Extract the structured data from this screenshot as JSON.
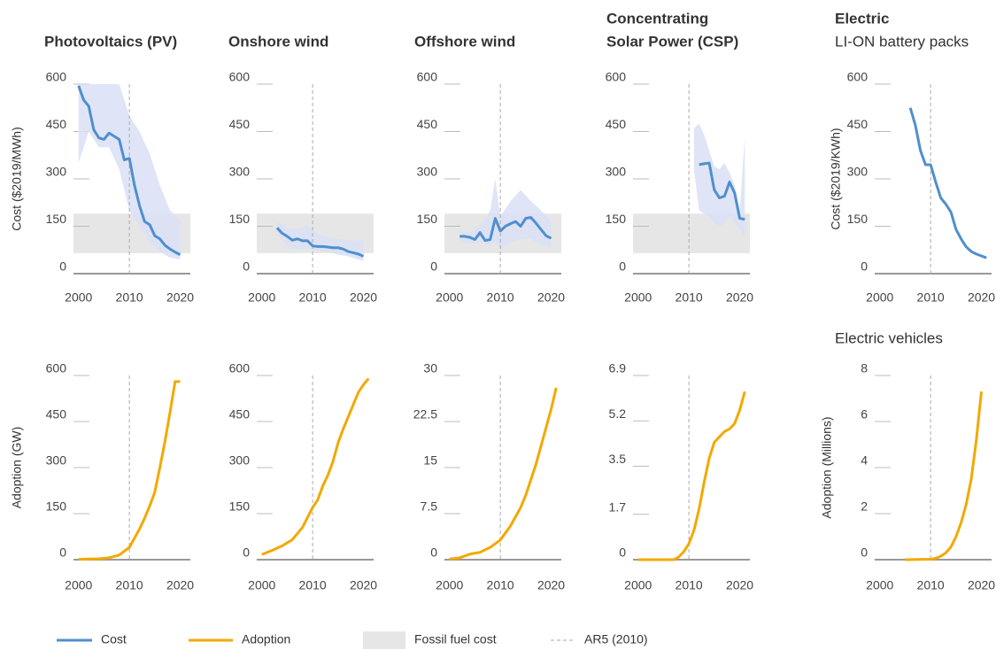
{
  "chart_data": [
    {
      "type": "line",
      "title": "Photovoltaics (PV)",
      "y_label": "Cost ($2019/MWh)",
      "x": [
        2000,
        2001,
        2002,
        2003,
        2004,
        2005,
        2006,
        2007,
        2008,
        2009,
        2010,
        2011,
        2012,
        2013,
        2014,
        2015,
        2016,
        2017,
        2018,
        2019,
        2020
      ],
      "series": [
        {
          "color": "#4f8fcf",
          "values": [
            595,
            550,
            530,
            455,
            430,
            425,
            445,
            435,
            425,
            360,
            365,
            280,
            215,
            165,
            155,
            120,
            110,
            90,
            78,
            68,
            60
          ]
        }
      ],
      "band": {
        "color": "#d9e1f4",
        "x": [
          2000,
          2002,
          2004,
          2006,
          2008,
          2010,
          2012,
          2014,
          2016,
          2018,
          2020
        ],
        "lower": [
          350,
          450,
          400,
          400,
          330,
          200,
          150,
          100,
          70,
          50,
          45
        ],
        "upper": [
          600,
          600,
          600,
          600,
          600,
          500,
          450,
          380,
          280,
          200,
          170
        ]
      },
      "fossil_range": [
        65,
        190
      ],
      "reference_x": 2010,
      "xlim": [
        1999,
        2022
      ],
      "xticks": [
        2000,
        2010,
        2020
      ],
      "ylim": [
        0,
        600
      ],
      "yticks": [
        0,
        150,
        300,
        450,
        600
      ]
    },
    {
      "type": "line",
      "title": "Onshore wind",
      "x": [
        2003,
        2004,
        2005,
        2006,
        2007,
        2008,
        2009,
        2010,
        2011,
        2012,
        2013,
        2014,
        2015,
        2016,
        2017,
        2018,
        2019,
        2020
      ],
      "series": [
        {
          "color": "#4f8fcf",
          "values": [
            145,
            128,
            118,
            106,
            110,
            104,
            104,
            88,
            86,
            86,
            84,
            82,
            82,
            78,
            70,
            66,
            62,
            55
          ]
        }
      ],
      "band": {
        "color": "#d9e1f4",
        "x": [
          2003,
          2005,
          2007,
          2009,
          2011,
          2013,
          2015,
          2017,
          2020
        ],
        "lower": [
          125,
          90,
          75,
          80,
          70,
          70,
          60,
          55,
          40
        ],
        "upper": [
          165,
          145,
          140,
          155,
          125,
          115,
          110,
          105,
          105
        ]
      },
      "fossil_range": [
        65,
        190
      ],
      "reference_x": 2010,
      "xlim": [
        1999,
        2022
      ],
      "xticks": [
        2000,
        2010,
        2020
      ],
      "ylim": [
        0,
        600
      ],
      "yticks": [
        0,
        150,
        300,
        450,
        600
      ]
    },
    {
      "type": "line",
      "title": "Offshore wind",
      "x": [
        2002,
        2003,
        2004,
        2005,
        2006,
        2007,
        2008,
        2009,
        2010,
        2011,
        2012,
        2013,
        2014,
        2015,
        2016,
        2017,
        2018,
        2019,
        2020
      ],
      "series": [
        {
          "color": "#4f8fcf",
          "values": [
            118,
            118,
            115,
            108,
            130,
            105,
            108,
            175,
            135,
            150,
            158,
            165,
            150,
            175,
            178,
            160,
            140,
            120,
            112
          ]
        }
      ],
      "band": {
        "color": "#d9e1f4",
        "x": [
          2002,
          2004,
          2006,
          2008,
          2009,
          2010,
          2012,
          2014,
          2016,
          2018,
          2020
        ],
        "lower": [
          100,
          95,
          100,
          90,
          100,
          80,
          100,
          110,
          110,
          90,
          85
        ],
        "upper": [
          130,
          130,
          150,
          200,
          300,
          180,
          230,
          265,
          230,
          200,
          165
        ]
      },
      "fossil_range": [
        65,
        190
      ],
      "reference_x": 2010,
      "xlim": [
        1999,
        2022
      ],
      "xticks": [
        2000,
        2010,
        2020
      ],
      "ylim": [
        0,
        600
      ],
      "yticks": [
        0,
        150,
        300,
        450,
        600
      ]
    },
    {
      "type": "line",
      "title": [
        "Concentrating",
        "Solar Power (CSP)"
      ],
      "x": [
        2012,
        2013,
        2014,
        2015,
        2016,
        2017,
        2018,
        2019,
        2020,
        2021
      ],
      "series": [
        {
          "color": "#4f8fcf",
          "values": [
            345,
            348,
            350,
            265,
            240,
            245,
            290,
            255,
            175,
            172
          ]
        }
      ],
      "band": {
        "color": "#d9e1f4",
        "x": [
          2011,
          2012,
          2013,
          2014,
          2015,
          2016,
          2017,
          2018,
          2019,
          2020,
          2021
        ],
        "lower": [
          330,
          200,
          190,
          180,
          160,
          150,
          160,
          180,
          160,
          140,
          120
        ],
        "upper": [
          460,
          475,
          440,
          390,
          340,
          330,
          350,
          320,
          280,
          200,
          430
        ]
      },
      "fossil_range": [
        65,
        190
      ],
      "reference_x": 2010,
      "xlim": [
        1999,
        2022
      ],
      "xticks": [
        2000,
        2010,
        2020
      ],
      "ylim": [
        0,
        600
      ],
      "yticks": [
        0,
        150,
        300,
        450,
        600
      ]
    },
    {
      "type": "line",
      "title": "Electric",
      "subtitle": "LI-ON battery packs",
      "y_label": "Cost ($2019/KWh)",
      "x": [
        2006,
        2007,
        2008,
        2009,
        2010,
        2011,
        2012,
        2013,
        2014,
        2015,
        2016,
        2017,
        2018,
        2019,
        2020,
        2021
      ],
      "series": [
        {
          "color": "#4f8fcf",
          "values": [
            525,
            470,
            390,
            345,
            345,
            290,
            240,
            220,
            195,
            140,
            110,
            85,
            70,
            62,
            56,
            50
          ]
        }
      ],
      "reference_x": 2010,
      "xlim": [
        1999,
        2022
      ],
      "xticks": [
        2000,
        2010,
        2020
      ],
      "ylim": [
        0,
        600
      ],
      "yticks": [
        0,
        150,
        300,
        450,
        600
      ]
    },
    {
      "type": "line",
      "y_label": "Adoption (GW)",
      "x": [
        2000,
        2002,
        2004,
        2006,
        2008,
        2010,
        2011,
        2012,
        2013,
        2014,
        2015,
        2016,
        2017,
        2018,
        2019,
        2020
      ],
      "series": [
        {
          "color": "#f2a900",
          "values": [
            1,
            2,
            3,
            6,
            15,
            40,
            70,
            100,
            135,
            175,
            220,
            300,
            385,
            480,
            580,
            580
          ]
        }
      ],
      "reference_x": 2010,
      "xlim": [
        1999,
        2022
      ],
      "xticks": [
        2000,
        2010,
        2020
      ],
      "ylim": [
        0,
        600
      ],
      "yticks": [
        0,
        150,
        300,
        450,
        600
      ]
    },
    {
      "type": "line",
      "x": [
        2000,
        2002,
        2004,
        2006,
        2008,
        2010,
        2011,
        2012,
        2013,
        2014,
        2015,
        2016,
        2017,
        2018,
        2019,
        2020,
        2021
      ],
      "series": [
        {
          "color": "#f2a900",
          "values": [
            17,
            30,
            45,
            65,
            105,
            170,
            195,
            240,
            275,
            320,
            380,
            425,
            465,
            505,
            545,
            570,
            590
          ]
        }
      ],
      "reference_x": 2010,
      "xlim": [
        1999,
        2022
      ],
      "xticks": [
        2000,
        2010,
        2020
      ],
      "ylim": [
        0,
        600
      ],
      "yticks": [
        0,
        150,
        300,
        450,
        600
      ]
    },
    {
      "type": "line",
      "x": [
        2000,
        2002,
        2004,
        2006,
        2008,
        2010,
        2012,
        2014,
        2015,
        2016,
        2017,
        2018,
        2019,
        2020,
        2021
      ],
      "series": [
        {
          "color": "#f2a900",
          "values": [
            0.1,
            0.3,
            0.9,
            1.2,
            2,
            3.2,
            5.5,
            8.5,
            10.5,
            13,
            15.5,
            18.5,
            21.5,
            24.5,
            28
          ]
        }
      ],
      "reference_x": 2010,
      "xlim": [
        1999,
        2022
      ],
      "xticks": [
        2000,
        2010,
        2020
      ],
      "ylim": [
        0,
        30
      ],
      "yticks": [
        0,
        7.5,
        15,
        22.5,
        30
      ]
    },
    {
      "type": "line",
      "x": [
        2000,
        2007,
        2008,
        2009,
        2010,
        2011,
        2012,
        2013,
        2014,
        2015,
        2016,
        2017,
        2018,
        2019,
        2020,
        2021
      ],
      "series": [
        {
          "color": "#f2a900",
          "values": [
            0,
            0,
            0.1,
            0.3,
            0.6,
            1.1,
            1.9,
            2.9,
            3.8,
            4.4,
            4.6,
            4.8,
            4.9,
            5.1,
            5.6,
            6.3
          ]
        }
      ],
      "reference_x": 2010,
      "xlim": [
        1999,
        2022
      ],
      "xticks": [
        2000,
        2010,
        2020
      ],
      "ylim": [
        0,
        6.9
      ],
      "yticks": [
        0,
        1.7,
        3.5,
        5.2,
        6.9
      ]
    },
    {
      "type": "line",
      "title": "Electric vehicles",
      "y_label": "Adoption (Millions)",
      "x": [
        2005,
        2010,
        2011,
        2012,
        2013,
        2014,
        2015,
        2016,
        2017,
        2018,
        2019,
        2020
      ],
      "series": [
        {
          "color": "#f2a900",
          "values": [
            0,
            0.02,
            0.06,
            0.15,
            0.3,
            0.55,
            1,
            1.6,
            2.4,
            3.5,
            5.2,
            7.3
          ]
        }
      ],
      "reference_x": 2010,
      "xlim": [
        1999,
        2022
      ],
      "xticks": [
        2000,
        2010,
        2020
      ],
      "ylim": [
        0,
        8
      ],
      "yticks": [
        0,
        2,
        4,
        6,
        8
      ]
    }
  ],
  "legend": [
    {
      "label": "Cost",
      "kind": "line",
      "color": "#4f8fcf"
    },
    {
      "label": "Adoption",
      "kind": "line",
      "color": "#f2a900"
    },
    {
      "label": "Fossil fuel cost",
      "kind": "band",
      "color": "#e6e6e6"
    },
    {
      "label": "AR5 (2010)",
      "kind": "dashed",
      "color": "#aaaaaa"
    }
  ]
}
